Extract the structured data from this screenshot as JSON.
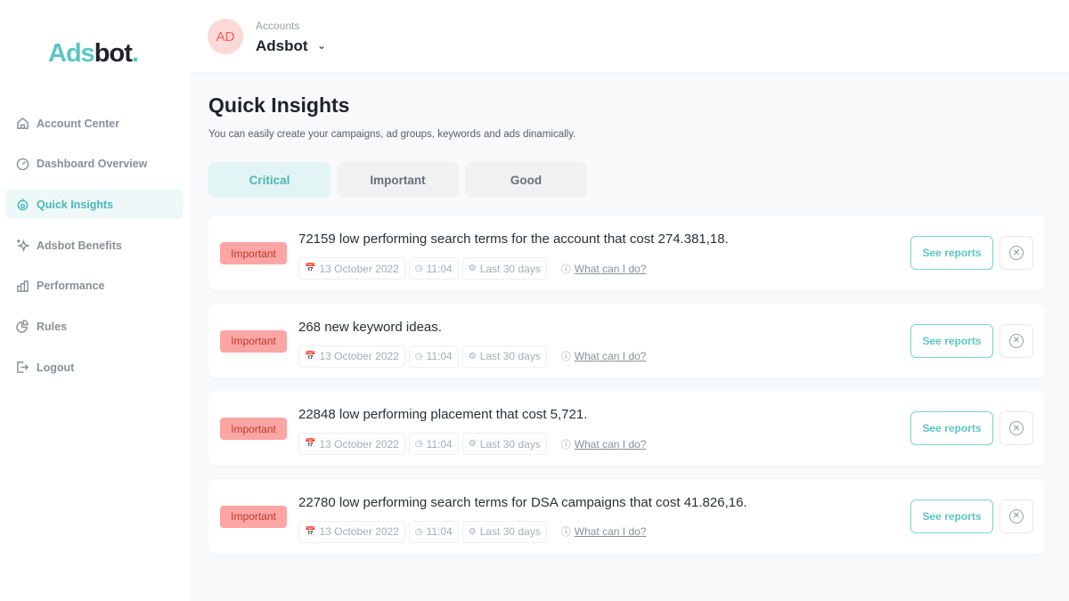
{
  "brand": {
    "logo": "Adsbot"
  },
  "sidebar": {
    "items": [
      {
        "label": "Account Center",
        "icon": "home-icon"
      },
      {
        "label": "Dashboard Overview",
        "icon": "gauge-icon"
      },
      {
        "label": "Quick Insights",
        "icon": "insights-icon",
        "active": true
      },
      {
        "label": "Adsbot Benefits",
        "icon": "sparkle-icon"
      },
      {
        "label": "Performance",
        "icon": "bar-chart-icon"
      },
      {
        "label": "Rules",
        "icon": "pie-icon"
      },
      {
        "label": "Logout",
        "icon": "logout-icon"
      }
    ]
  },
  "header": {
    "avatar": "AD",
    "accounts_label": "Accounts",
    "account_name": "Adsbot"
  },
  "main": {
    "title": "Quick Insights",
    "subtitle": "You can easily create your campaigns, ad groups, keywords and ads dinamically.",
    "tabs": [
      {
        "label": "Critical",
        "active": true
      },
      {
        "label": "Important"
      },
      {
        "label": "Good"
      }
    ],
    "cards": [
      {
        "badge": "Important",
        "title": "72159 low performing search terms for the account that cost 274.381,18.",
        "date": "13 October 2022",
        "time": "11:04",
        "range": "Last 30 days",
        "help": "What can I do?",
        "action": "See reports"
      },
      {
        "badge": "Important",
        "title": "268 new keyword ideas.",
        "date": "13 October 2022",
        "time": "11:04",
        "range": "Last 30 days",
        "help": "What can I do?",
        "action": "See reports"
      },
      {
        "badge": "Important",
        "title": "22848 low performing placement that cost 5,721.",
        "date": "13 October 2022",
        "time": "11:04",
        "range": "Last 30 days",
        "help": "What can I do?",
        "action": "See reports"
      },
      {
        "badge": "Important",
        "title": "22780 low performing search terms for DSA campaigns that cost 41.826,16.",
        "date": "13 October 2022",
        "time": "11:04",
        "range": "Last 30 days",
        "help": "What can I do?",
        "action": "See reports"
      }
    ]
  },
  "colors": {
    "accent": "#5cc6c4",
    "badge_bg": "#fca5a5",
    "avatar_bg": "#fcd9d9"
  }
}
